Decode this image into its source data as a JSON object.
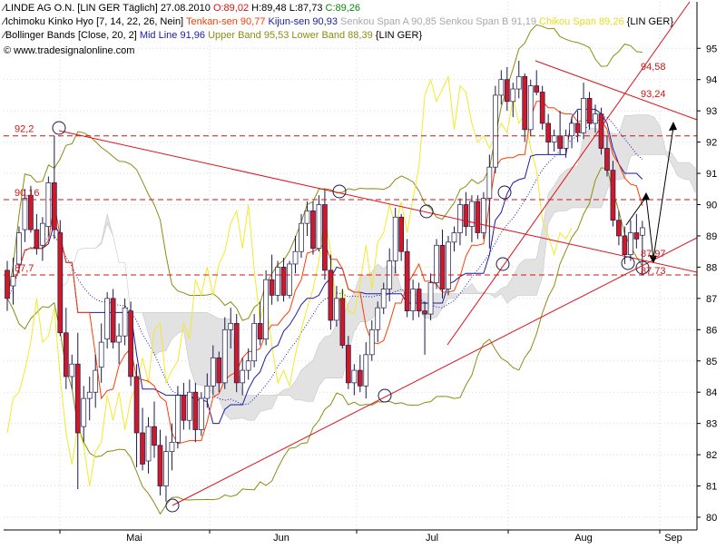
{
  "header": {
    "line1": {
      "name": "LINDE AG O.N. [LIN GER  Täglich]",
      "date": "27.08.2010",
      "ohlc_open": "O:89,02",
      "ohlc_high": "H:89,48",
      "ohlc_low": "L:87,73",
      "ohlc_close": "C:89,26"
    },
    "line2": {
      "ind": "Ichimoku Kinko Hyo [7, 14, 22, 26, Nein]",
      "tenkan": "Tenkan-sen 90,77",
      "kijun": "Kijun-sen 90,93",
      "spanA": "Senkou Span A 90,85",
      "spanB": "Senkou Span B 91,19",
      "chikou": "Chikou Span 89,26",
      "tag": "{LIN GER}"
    },
    "line3": {
      "ind": "Bollinger Bands [Close, 20, 2]",
      "mid": "Mid Line 91,96",
      "upper": "Upper Band 95,53",
      "lower": "Lower Band 88,39",
      "tag": "{LIN GER}"
    },
    "watermark": "© www.tradesignalonline.com"
  },
  "colors": {
    "bull": "#ffffff",
    "bear": "#cc1a2a",
    "tenkan": "#ff3b00",
    "kijun": "#1a1aa8",
    "chikou": "#f2ea2a",
    "bollinger": "#8c8c14",
    "cloud": "#e2e2e2",
    "trendline": "#e0101a",
    "dashed": "#d01515",
    "grid": "#d8d8d8",
    "text_red": "#d01515"
  },
  "chart_data": {
    "type": "candlestick",
    "symbol": "LINDE AG O.N.",
    "ylim": [
      80,
      95.5
    ],
    "yticks": [
      80,
      81,
      82,
      83,
      84,
      85,
      86,
      87,
      88,
      89,
      90,
      91,
      92,
      93,
      94,
      95
    ],
    "ytick_labels": [
      "80",
      "81",
      "82",
      "83",
      "84",
      "85",
      "86",
      "87",
      "88",
      "89",
      "90",
      "91",
      "92",
      "93",
      "94",
      "95"
    ],
    "xticks": [
      "Mai",
      "Jun",
      "Jul",
      "Aug",
      "Sep"
    ],
    "horizontal_levels": [
      {
        "value": 92.2,
        "label": "92,2"
      },
      {
        "value": 90.16,
        "label": "90,16"
      },
      {
        "value": 87.75,
        "label": "87,7"
      }
    ],
    "annotations": [
      "94,58",
      "93,24",
      "87,97",
      "87,73"
    ],
    "candles": [
      {
        "o": 87.9,
        "h": 88.2,
        "l": 86.6,
        "c": 87.0
      },
      {
        "o": 87.4,
        "h": 88.3,
        "l": 86.8,
        "c": 87.7
      },
      {
        "o": 88.1,
        "h": 89.3,
        "l": 87.8,
        "c": 89.1
      },
      {
        "o": 89.2,
        "h": 90.5,
        "l": 88.8,
        "c": 90.2
      },
      {
        "o": 90.3,
        "h": 90.6,
        "l": 89.1,
        "c": 89.2
      },
      {
        "o": 89.2,
        "h": 89.7,
        "l": 88.4,
        "c": 88.6
      },
      {
        "o": 88.7,
        "h": 89.6,
        "l": 88.2,
        "c": 89.4
      },
      {
        "o": 89.3,
        "h": 90.9,
        "l": 89.0,
        "c": 90.7
      },
      {
        "o": 90.7,
        "h": 92.2,
        "l": 88.9,
        "c": 89.2
      },
      {
        "o": 89.1,
        "h": 89.5,
        "l": 85.8,
        "c": 85.9
      },
      {
        "o": 85.9,
        "h": 86.7,
        "l": 84.1,
        "c": 84.5
      },
      {
        "o": 84.5,
        "h": 85.2,
        "l": 84.1,
        "c": 84.9
      },
      {
        "o": 84.9,
        "h": 85.9,
        "l": 80.9,
        "c": 82.7
      },
      {
        "o": 82.9,
        "h": 84.2,
        "l": 82.4,
        "c": 83.8
      },
      {
        "o": 83.8,
        "h": 84.5,
        "l": 83.1,
        "c": 84.0
      },
      {
        "o": 84.0,
        "h": 85.2,
        "l": 83.5,
        "c": 84.7
      },
      {
        "o": 84.8,
        "h": 86.2,
        "l": 84.3,
        "c": 85.6
      },
      {
        "o": 85.7,
        "h": 87.2,
        "l": 85.4,
        "c": 87.0
      },
      {
        "o": 87.0,
        "h": 87.3,
        "l": 85.4,
        "c": 85.6
      },
      {
        "o": 85.6,
        "h": 86.2,
        "l": 84.9,
        "c": 85.8
      },
      {
        "o": 85.8,
        "h": 87.0,
        "l": 85.5,
        "c": 86.7
      },
      {
        "o": 86.6,
        "h": 86.9,
        "l": 84.2,
        "c": 84.5
      },
      {
        "o": 84.5,
        "h": 84.9,
        "l": 81.6,
        "c": 82.7
      },
      {
        "o": 82.7,
        "h": 83.5,
        "l": 81.5,
        "c": 81.7
      },
      {
        "o": 81.8,
        "h": 83.2,
        "l": 81.4,
        "c": 82.9
      },
      {
        "o": 82.9,
        "h": 83.7,
        "l": 81.9,
        "c": 82.3
      },
      {
        "o": 82.3,
        "h": 82.8,
        "l": 80.7,
        "c": 81.0
      },
      {
        "o": 81.0,
        "h": 82.6,
        "l": 80.5,
        "c": 82.1
      },
      {
        "o": 82.1,
        "h": 83.0,
        "l": 81.5,
        "c": 82.4
      },
      {
        "o": 82.4,
        "h": 84.2,
        "l": 82.2,
        "c": 83.9
      },
      {
        "o": 83.9,
        "h": 84.3,
        "l": 82.8,
        "c": 83.1
      },
      {
        "o": 83.1,
        "h": 84.4,
        "l": 82.8,
        "c": 84.0
      },
      {
        "o": 84.0,
        "h": 84.3,
        "l": 82.4,
        "c": 82.8
      },
      {
        "o": 82.8,
        "h": 84.0,
        "l": 82.6,
        "c": 83.8
      },
      {
        "o": 83.8,
        "h": 84.6,
        "l": 83.5,
        "c": 84.2
      },
      {
        "o": 84.2,
        "h": 85.5,
        "l": 83.9,
        "c": 85.1
      },
      {
        "o": 85.1,
        "h": 85.3,
        "l": 84.0,
        "c": 84.3
      },
      {
        "o": 84.3,
        "h": 86.4,
        "l": 84.1,
        "c": 86.0
      },
      {
        "o": 86.0,
        "h": 86.7,
        "l": 85.4,
        "c": 86.2
      },
      {
        "o": 86.2,
        "h": 86.5,
        "l": 84.0,
        "c": 84.3
      },
      {
        "o": 84.3,
        "h": 85.1,
        "l": 83.9,
        "c": 84.7
      },
      {
        "o": 84.7,
        "h": 85.4,
        "l": 84.4,
        "c": 85.0
      },
      {
        "o": 85.0,
        "h": 86.5,
        "l": 84.8,
        "c": 86.2
      },
      {
        "o": 86.2,
        "h": 86.9,
        "l": 85.5,
        "c": 85.7
      },
      {
        "o": 85.7,
        "h": 87.9,
        "l": 85.5,
        "c": 87.6
      },
      {
        "o": 87.6,
        "h": 88.4,
        "l": 86.8,
        "c": 87.1
      },
      {
        "o": 87.1,
        "h": 88.2,
        "l": 86.9,
        "c": 88.0
      },
      {
        "o": 88.0,
        "h": 88.3,
        "l": 86.9,
        "c": 87.1
      },
      {
        "o": 87.1,
        "h": 88.2,
        "l": 87.0,
        "c": 88.1
      },
      {
        "o": 88.1,
        "h": 89.0,
        "l": 87.8,
        "c": 88.5
      },
      {
        "o": 88.5,
        "h": 89.7,
        "l": 88.3,
        "c": 89.4
      },
      {
        "o": 89.4,
        "h": 90.1,
        "l": 89.0,
        "c": 89.8
      },
      {
        "o": 89.8,
        "h": 90.1,
        "l": 88.4,
        "c": 88.6
      },
      {
        "o": 88.6,
        "h": 90.3,
        "l": 88.5,
        "c": 90.0
      },
      {
        "o": 90.0,
        "h": 90.5,
        "l": 87.6,
        "c": 87.9
      },
      {
        "o": 87.9,
        "h": 88.4,
        "l": 86.0,
        "c": 86.3
      },
      {
        "o": 86.3,
        "h": 87.4,
        "l": 86.1,
        "c": 87.0
      },
      {
        "o": 87.0,
        "h": 87.3,
        "l": 85.4,
        "c": 85.5
      },
      {
        "o": 85.5,
        "h": 85.8,
        "l": 84.1,
        "c": 84.3
      },
      {
        "o": 84.3,
        "h": 84.9,
        "l": 83.9,
        "c": 84.7
      },
      {
        "o": 84.7,
        "h": 85.2,
        "l": 84.0,
        "c": 84.2
      },
      {
        "o": 84.2,
        "h": 85.6,
        "l": 83.8,
        "c": 85.2
      },
      {
        "o": 85.2,
        "h": 86.3,
        "l": 85.0,
        "c": 86.0
      },
      {
        "o": 86.0,
        "h": 86.9,
        "l": 85.6,
        "c": 86.7
      },
      {
        "o": 86.7,
        "h": 87.5,
        "l": 86.5,
        "c": 87.3
      },
      {
        "o": 87.3,
        "h": 88.6,
        "l": 86.9,
        "c": 88.2
      },
      {
        "o": 88.2,
        "h": 89.9,
        "l": 87.8,
        "c": 89.6
      },
      {
        "o": 89.6,
        "h": 89.7,
        "l": 88.2,
        "c": 88.5
      },
      {
        "o": 88.5,
        "h": 88.9,
        "l": 86.4,
        "c": 86.6
      },
      {
        "o": 86.6,
        "h": 87.6,
        "l": 86.3,
        "c": 87.3
      },
      {
        "o": 87.3,
        "h": 87.5,
        "l": 86.4,
        "c": 86.6
      },
      {
        "o": 86.6,
        "h": 86.9,
        "l": 85.2,
        "c": 86.5
      },
      {
        "o": 86.5,
        "h": 87.8,
        "l": 86.3,
        "c": 87.5
      },
      {
        "o": 87.5,
        "h": 88.9,
        "l": 87.3,
        "c": 88.7
      },
      {
        "o": 88.7,
        "h": 89.2,
        "l": 87.0,
        "c": 87.3
      },
      {
        "o": 87.3,
        "h": 89.0,
        "l": 87.1,
        "c": 88.8
      },
      {
        "o": 88.8,
        "h": 89.3,
        "l": 88.5,
        "c": 89.1
      },
      {
        "o": 89.1,
        "h": 90.2,
        "l": 88.7,
        "c": 90.0
      },
      {
        "o": 90.0,
        "h": 90.4,
        "l": 89.0,
        "c": 89.3
      },
      {
        "o": 89.3,
        "h": 90.3,
        "l": 88.8,
        "c": 90.1
      },
      {
        "o": 90.1,
        "h": 90.3,
        "l": 88.9,
        "c": 89.1
      },
      {
        "o": 89.1,
        "h": 90.4,
        "l": 88.9,
        "c": 90.2
      },
      {
        "o": 90.2,
        "h": 91.6,
        "l": 88.6,
        "c": 91.2
      },
      {
        "o": 91.2,
        "h": 93.8,
        "l": 91.0,
        "c": 93.5
      },
      {
        "o": 93.5,
        "h": 94.3,
        "l": 93.2,
        "c": 94.0
      },
      {
        "o": 94.0,
        "h": 94.4,
        "l": 93.0,
        "c": 93.3
      },
      {
        "o": 93.3,
        "h": 93.9,
        "l": 92.8,
        "c": 93.7
      },
      {
        "o": 93.7,
        "h": 94.6,
        "l": 93.4,
        "c": 94.1
      },
      {
        "o": 94.1,
        "h": 94.2,
        "l": 92.0,
        "c": 92.4
      },
      {
        "o": 92.4,
        "h": 94.0,
        "l": 92.2,
        "c": 93.8
      },
      {
        "o": 93.8,
        "h": 94.3,
        "l": 93.5,
        "c": 93.6
      },
      {
        "o": 93.6,
        "h": 93.8,
        "l": 92.4,
        "c": 92.6
      },
      {
        "o": 92.6,
        "h": 92.9,
        "l": 91.6,
        "c": 92.0
      },
      {
        "o": 92.0,
        "h": 92.4,
        "l": 91.7,
        "c": 92.2
      },
      {
        "o": 92.2,
        "h": 93.0,
        "l": 91.6,
        "c": 91.8
      },
      {
        "o": 91.8,
        "h": 92.4,
        "l": 91.5,
        "c": 92.2
      },
      {
        "o": 92.2,
        "h": 92.8,
        "l": 91.8,
        "c": 92.6
      },
      {
        "o": 92.6,
        "h": 93.0,
        "l": 92.0,
        "c": 92.3
      },
      {
        "o": 92.3,
        "h": 93.9,
        "l": 92.1,
        "c": 93.4
      },
      {
        "o": 93.4,
        "h": 93.6,
        "l": 92.4,
        "c": 92.6
      },
      {
        "o": 92.6,
        "h": 93.2,
        "l": 92.3,
        "c": 92.9
      },
      {
        "o": 92.9,
        "h": 93.1,
        "l": 91.6,
        "c": 91.8
      },
      {
        "o": 91.8,
        "h": 92.2,
        "l": 90.9,
        "c": 91.1
      },
      {
        "o": 91.1,
        "h": 91.4,
        "l": 89.3,
        "c": 89.5
      },
      {
        "o": 89.5,
        "h": 89.8,
        "l": 88.7,
        "c": 89.0
      },
      {
        "o": 89.0,
        "h": 89.3,
        "l": 88.1,
        "c": 88.4
      },
      {
        "o": 88.4,
        "h": 89.5,
        "l": 88.2,
        "c": 89.1
      },
      {
        "o": 89.1,
        "h": 89.7,
        "l": 88.6,
        "c": 88.9
      },
      {
        "o": 89.02,
        "h": 89.48,
        "l": 87.73,
        "c": 89.26
      }
    ]
  }
}
